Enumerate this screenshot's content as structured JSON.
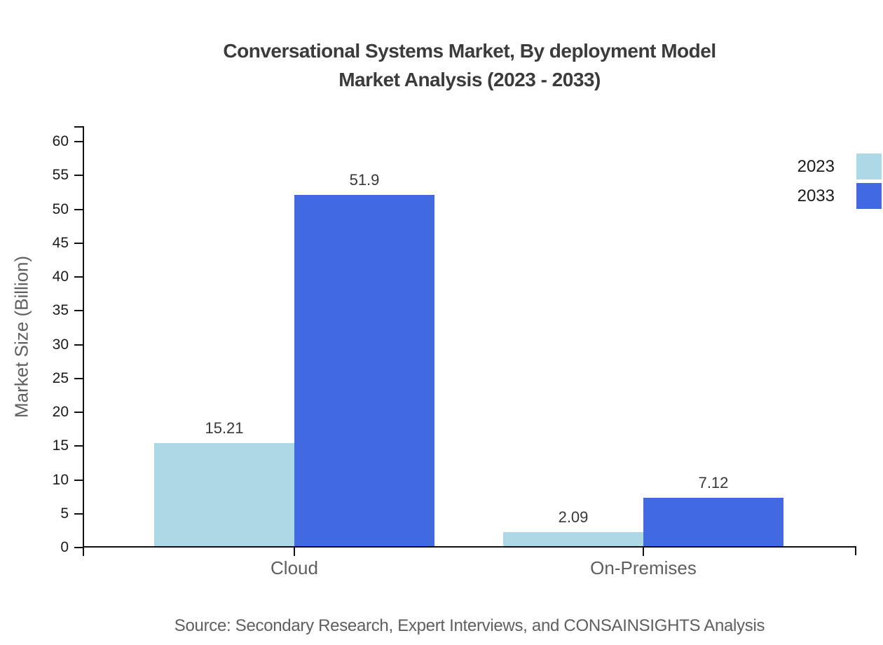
{
  "title": {
    "line1": "Conversational Systems Market, By deployment Model",
    "line2": "Market Analysis (2023 - 2033)"
  },
  "y_axis_title": "Market Size (Billion)",
  "source_text": "Source: Secondary Research, Expert Interviews, and CONSAINSIGHTS Analysis",
  "colors": {
    "series_2023": "#ADD8E6",
    "series_2033": "#4169E1",
    "axis": "#111111",
    "title_text": "#3b3b3b",
    "muted_text": "#5f5f5f",
    "value_label_text": "#383838"
  },
  "chart_data": {
    "type": "bar",
    "title": "Conversational Systems Market, By deployment Model Market Analysis (2023 - 2033)",
    "categories": [
      "Cloud",
      "On-Premises"
    ],
    "series": [
      {
        "name": "2023",
        "color": "#ADD8E6",
        "values": [
          15.21,
          2.09
        ],
        "labels": [
          "15.21",
          "2.09"
        ]
      },
      {
        "name": "2033",
        "color": "#4169E1",
        "values": [
          51.9,
          7.12
        ],
        "labels": [
          "51.9",
          "7.12"
        ]
      }
    ],
    "xlabel": "",
    "ylabel": "Market Size (Billion)",
    "ylim": [
      0,
      60
    ],
    "ytick_step": 5,
    "ytick_labels": [
      "0",
      "5",
      "10",
      "15",
      "20",
      "25",
      "30",
      "35",
      "40",
      "45",
      "50",
      "55",
      "60"
    ],
    "grid": false,
    "legend_position": "top-right",
    "value_labels_shown": true
  }
}
